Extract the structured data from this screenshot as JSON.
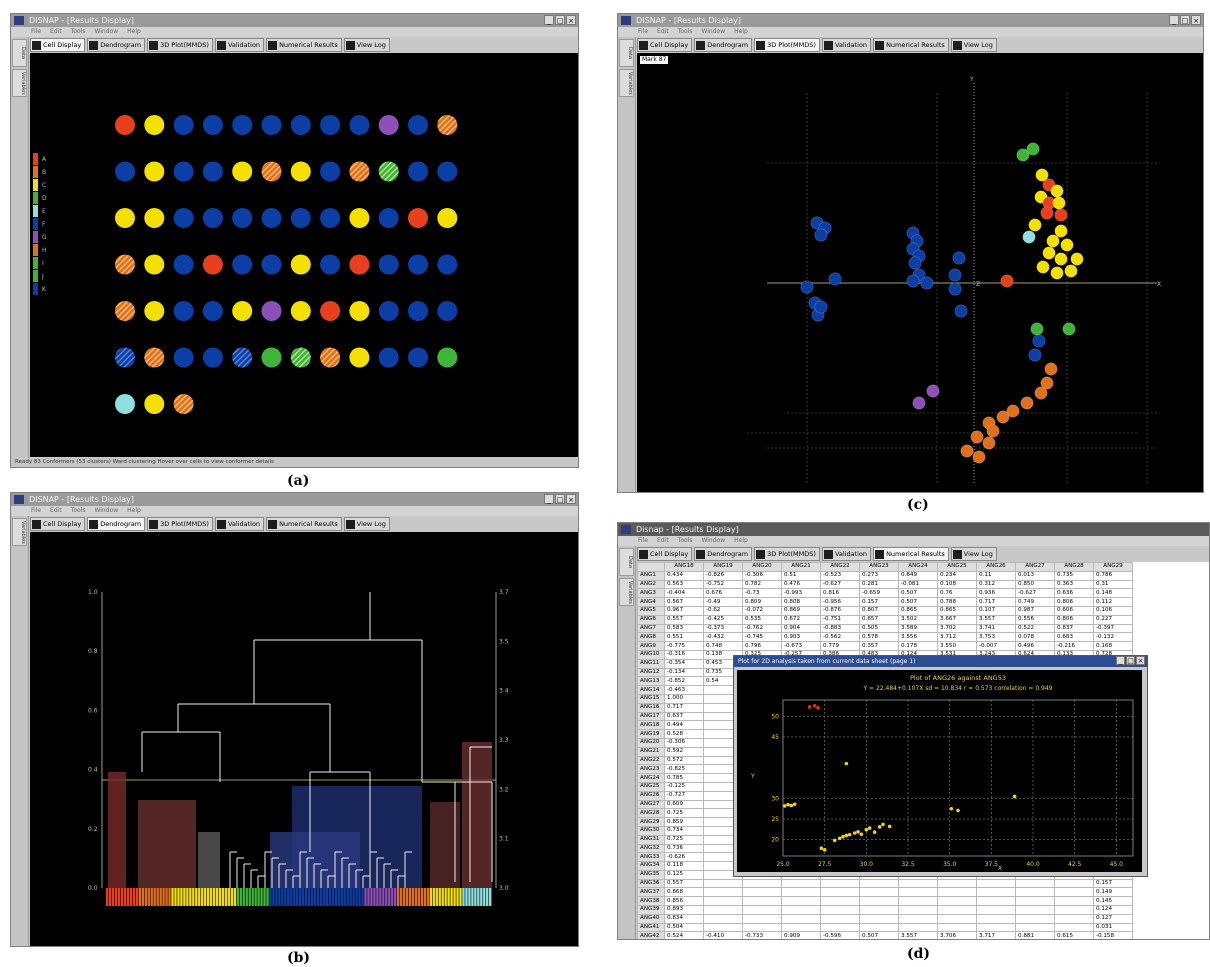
{
  "captions": {
    "a": "(a)",
    "b": "(b)",
    "c": "(c)",
    "d": "(d)"
  },
  "colors": {
    "red": "#e8401c",
    "yellow": "#f3e000",
    "blue": "#0c3fa6",
    "orange": "#e0701e",
    "green": "#3fb43a",
    "purple": "#8c50b8",
    "cyan": "#8ee0e0",
    "hatch_green": "#78c04a",
    "hatch_blue": "#2658b8"
  },
  "panel_a": {
    "title": "DISNAP - [Results Display]",
    "menu": [
      "File",
      "Edit",
      "Tools",
      "Window",
      "Help"
    ],
    "side_tabs": [
      "Data",
      "Variables"
    ],
    "tabs": [
      {
        "label": "Cell Display",
        "icon": "grid-icon"
      },
      {
        "label": "Dendrogram",
        "icon": "dendrogram-icon"
      },
      {
        "label": "3D Plot(MMDS)",
        "icon": "plot-3d-icon"
      },
      {
        "label": "Validation",
        "icon": "validation-icon"
      },
      {
        "label": "Numerical Results",
        "icon": "numbers-icon"
      },
      {
        "label": "View Log",
        "icon": "log-icon"
      }
    ],
    "active_tab": 0,
    "legend": [
      "A",
      "B",
      "C",
      "D",
      "E",
      "F",
      "G",
      "H",
      "I",
      "J",
      "K"
    ],
    "legend_colors": [
      "red",
      "orange",
      "yellow",
      "green",
      "cyan",
      "blue",
      "purple",
      "orange",
      "green",
      "green",
      "blue"
    ],
    "cells": [
      [
        "red",
        "yellow",
        "blue",
        "blue",
        "blue",
        "blue",
        "blue",
        "blue",
        "blue",
        "purple",
        "blue",
        "hatch_orange"
      ],
      [
        "blue",
        "yellow",
        "blue",
        "blue",
        "yellow",
        "hatch_orange",
        "yellow",
        "blue",
        "hatch_orange",
        "hatch_green",
        "blue",
        "blue"
      ],
      [
        "yellow",
        "yellow",
        "blue",
        "blue",
        "blue",
        "blue",
        "blue",
        "blue",
        "yellow",
        "blue",
        "red",
        "yellow"
      ],
      [
        "hatch_orange",
        "yellow",
        "blue",
        "red",
        "blue",
        "blue",
        "yellow",
        "blue",
        "red",
        "blue",
        "blue",
        "blue"
      ],
      [
        "hatch_orange",
        "yellow",
        "blue",
        "blue",
        "yellow",
        "purple",
        "yellow",
        "red",
        "yellow",
        "blue",
        "blue",
        "blue"
      ],
      [
        "hatch_blue",
        "hatch_orange",
        "blue",
        "blue",
        "hatch_blue",
        "green",
        "hatch_green",
        "hatch_orange",
        "yellow",
        "blue",
        "blue",
        "green"
      ],
      [
        "cyan",
        "yellow",
        "hatch_orange"
      ]
    ],
    "status": "Ready  83 Conformers (53 clusters)  Ward clustering  Hover over cells to view conformer details"
  },
  "panel_b": {
    "title": "DISNAP - [Results Display]",
    "menu": [
      "File",
      "Edit",
      "Tools",
      "Window",
      "Help"
    ],
    "side_tabs": [
      "Variables"
    ],
    "tabs": [
      {
        "label": "Cell Display",
        "icon": "grid-icon"
      },
      {
        "label": "Dendrogram",
        "icon": "dendrogram-icon"
      },
      {
        "label": "3D Plot(MMDS)",
        "icon": "plot-3d-icon"
      },
      {
        "label": "Validation",
        "icon": "validation-icon"
      },
      {
        "label": "Numerical Results",
        "icon": "numbers-icon"
      },
      {
        "label": "View Log",
        "icon": "log-icon"
      }
    ],
    "active_tab": 1,
    "left_axis_ticks": [
      "0.0",
      "0.2",
      "0.4",
      "0.6",
      "0.8",
      "1.0"
    ],
    "right_axis_ticks": [
      "3.0",
      "3.1",
      "3.2",
      "3.3",
      "3.4",
      "3.5",
      "3.7"
    ],
    "leaf_colors": [
      "red",
      "orange",
      "yellow",
      "yellow",
      "green",
      "blue",
      "blue",
      "blue",
      "purple",
      "orange",
      "yellow",
      "cyan"
    ]
  },
  "panel_c": {
    "title": "DISNAP - [Results Display]",
    "menu": [
      "File",
      "Edit",
      "Tools",
      "Window",
      "Help"
    ],
    "side_tabs": [
      "Data",
      "Variables"
    ],
    "tabs": [
      {
        "label": "Cell Display",
        "icon": "grid-icon"
      },
      {
        "label": "Dendrogram",
        "icon": "dendrogram-icon"
      },
      {
        "label": "3D Plot(MMDS)",
        "icon": "plot-3d-icon"
      },
      {
        "label": "Validation",
        "icon": "validation-icon"
      },
      {
        "label": "Numerical Results",
        "icon": "numbers-icon"
      },
      {
        "label": "View Log",
        "icon": "log-icon"
      }
    ],
    "active_tab": 2,
    "plot_tag": "Mark 87",
    "axis_x": "X",
    "axis_y": "Y",
    "axis_z": "Z"
  },
  "panel_d": {
    "title": "Disnap - [Results Display]",
    "menu": [
      "File",
      "Edit",
      "Tools",
      "Window",
      "Help"
    ],
    "side_tabs": [
      "Data",
      "Variables"
    ],
    "tabs": [
      {
        "label": "Cell Display",
        "icon": "grid-icon"
      },
      {
        "label": "Dendrogram",
        "icon": "dendrogram-icon"
      },
      {
        "label": "3D Plot(MMDS)",
        "icon": "plot-3d-icon"
      },
      {
        "label": "Validation",
        "icon": "validation-icon"
      },
      {
        "label": "Numerical Results",
        "icon": "numbers-icon"
      },
      {
        "label": "View Log",
        "icon": "log-icon"
      }
    ],
    "active_tab": 4,
    "columns": [
      "ANG18",
      "ANG19",
      "ANG20",
      "ANG21",
      "ANG22",
      "ANG23",
      "ANG24",
      "ANG25",
      "ANG26",
      "ANG27",
      "ANG28",
      "ANG29"
    ],
    "rows": [
      [
        "ANG1",
        "0.434",
        "-0.826",
        "-0.306",
        "0.51",
        "-0.523",
        "0.273",
        "0.649",
        "0.234",
        "0.11",
        "0.013",
        "0.735",
        "0.786"
      ],
      [
        "ANG2",
        "0.563",
        "-0.752",
        "0.782",
        "0.476",
        "-0.627",
        "0.281",
        "-0.081",
        "0.108",
        "0.312",
        "0.850",
        "0.363",
        "0.31"
      ],
      [
        "ANG3",
        "-0.404",
        "0.676",
        "-0.73",
        "-0.993",
        "0.816",
        "-0.659",
        "0.507",
        "0.76",
        "0.936",
        "-0.627",
        "0.636",
        "0.148"
      ],
      [
        "ANG4",
        "0.567",
        "-0.49",
        "0.809",
        "0.808",
        "-0.956",
        "0.157",
        "0.507",
        "0.788",
        "0.717",
        "0.749",
        "0.806",
        "0.112"
      ],
      [
        "ANG5",
        "0.967",
        "-0.62",
        "-0.072",
        "0.869",
        "-0.876",
        "0.807",
        "0.865",
        "0.865",
        "0.107",
        "0.987",
        "0.606",
        "0.106"
      ],
      [
        "ANG6",
        "0.557",
        "-0.425",
        "0.535",
        "0.672",
        "-0.751",
        "0.657",
        "3.502",
        "3.667",
        "3.557",
        "0.556",
        "0.806",
        "0.227"
      ],
      [
        "ANG7",
        "0.583",
        "-0.373",
        "-0.762",
        "0.904",
        "-0.883",
        "0.505",
        "3.589",
        "3.702",
        "3.741",
        "0.522",
        "0.837",
        "-0.397"
      ],
      [
        "ANG8",
        "0.551",
        "-0.432",
        "-0.745",
        "0.903",
        "-0.562",
        "0.578",
        "3.556",
        "3.712",
        "3.753",
        "0.078",
        "0.683",
        "-0.132"
      ],
      [
        "ANG9",
        "-0.775",
        "0.748",
        "0.796",
        "-0.673",
        "0.779",
        "0.357",
        "0.178",
        "3.550",
        "-0.007",
        "0.496",
        "-0.216",
        "0.168"
      ],
      [
        "ANG10",
        "-0.316",
        "0.138",
        "0.325",
        "-0.257",
        "0.386",
        "0.483",
        "0.124",
        "3.531",
        "3.243",
        "0.624",
        "0.133",
        "0.728"
      ],
      [
        "ANG11",
        "-0.354",
        "0.453",
        "0.732",
        "-0.534",
        "0.565",
        "-0.453",
        "0.500",
        "3.555",
        "3.722",
        "0.755",
        "-0.536",
        "0.134"
      ],
      [
        "ANG12",
        "-0.134",
        "0.735",
        "0.397",
        "-0.961",
        "0.296",
        "-0.685",
        "0.520",
        "0.600",
        "0.578",
        "-0.605",
        "-0.546",
        "-0.331"
      ],
      [
        "ANG13",
        "-0.852",
        "0.54",
        "0.75",
        "0.999",
        "-0.852",
        "0.955",
        "0.555",
        "3.722",
        "3.723",
        "-0.666",
        "0.168",
        "0.127"
      ],
      [
        "ANG14",
        "-0.463",
        "",
        "",
        "",
        "",
        "",
        "",
        "",
        "",
        "",
        "",
        "0.154"
      ],
      [
        "ANG15",
        "1.000",
        "",
        "",
        "",
        "",
        "",
        "",
        "",
        "",
        "",
        "",
        "0.127"
      ],
      [
        "ANG16",
        "0.717",
        "",
        "",
        "",
        "",
        "",
        "",
        "",
        "",
        "",
        "",
        "0.125"
      ],
      [
        "ANG17",
        "0.637",
        "",
        "",
        "",
        "",
        "",
        "",
        "",
        "",
        "",
        "",
        "0.666"
      ],
      [
        "ANG18",
        "0.494",
        "",
        "",
        "",
        "",
        "",
        "",
        "",
        "",
        "",
        "",
        "0.126"
      ],
      [
        "ANG19",
        "0.528",
        "",
        "",
        "",
        "",
        "",
        "",
        "",
        "",
        "",
        "",
        "0.036"
      ],
      [
        "ANG20",
        "-0.306",
        "",
        "",
        "",
        "",
        "",
        "",
        "",
        "",
        "",
        "",
        "0.224"
      ],
      [
        "ANG21",
        "0.592",
        "",
        "",
        "",
        "",
        "",
        "",
        "",
        "",
        "",
        "",
        "0.175"
      ],
      [
        "ANG22",
        "0.572",
        "",
        "",
        "",
        "",
        "",
        "",
        "",
        "",
        "",
        "",
        "0.432"
      ],
      [
        "ANG23",
        "-0.825",
        "",
        "",
        "",
        "",
        "",
        "",
        "",
        "",
        "",
        "",
        "0.034"
      ],
      [
        "ANG24",
        "0.785",
        "",
        "",
        "",
        "",
        "",
        "",
        "",
        "",
        "",
        "",
        "0.125"
      ],
      [
        "ANG25",
        "-0.125",
        "",
        "",
        "",
        "",
        "",
        "",
        "",
        "",
        "",
        "",
        "0.123"
      ],
      [
        "ANG26",
        "-0.727",
        "",
        "",
        "",
        "",
        "",
        "",
        "",
        "",
        "",
        "",
        "0.157"
      ],
      [
        "ANG27",
        "0.609",
        "",
        "",
        "",
        "",
        "",
        "",
        "",
        "",
        "",
        "",
        "0.149"
      ],
      [
        "ANG28",
        "0.725",
        "",
        "",
        "",
        "",
        "",
        "",
        "",
        "",
        "",
        "",
        "0.172"
      ],
      [
        "ANG29",
        "0.859",
        "",
        "",
        "",
        "",
        "",
        "",
        "",
        "",
        "",
        "",
        "0.135"
      ],
      [
        "ANG30",
        "0.734",
        "",
        "",
        "",
        "",
        "",
        "",
        "",
        "",
        "",
        "",
        "0.335"
      ],
      [
        "ANG31",
        "0.725",
        "",
        "",
        "",
        "",
        "",
        "",
        "",
        "",
        "",
        "",
        "0.125"
      ],
      [
        "ANG32",
        "0.736",
        "",
        "",
        "",
        "",
        "",
        "",
        "",
        "",
        "",
        "",
        "0.432"
      ],
      [
        "ANG33",
        "-0.626",
        "",
        "",
        "",
        "",
        "",
        "",
        "",
        "",
        "",
        "",
        "-0.224"
      ],
      [
        "ANG34",
        "0.118",
        "",
        "",
        "",
        "",
        "",
        "",
        "",
        "",
        "",
        "",
        "0.125"
      ],
      [
        "ANG35",
        "0.125",
        "",
        "",
        "",
        "",
        "",
        "",
        "",
        "",
        "",
        "",
        "-0.221"
      ],
      [
        "ANG36",
        "0.557",
        "",
        "",
        "",
        "",
        "",
        "",
        "",
        "",
        "",
        "",
        "0.157"
      ],
      [
        "ANG37",
        "0.868",
        "",
        "",
        "",
        "",
        "",
        "",
        "",
        "",
        "",
        "",
        "0.149"
      ],
      [
        "ANG38",
        "0.856",
        "",
        "",
        "",
        "",
        "",
        "",
        "",
        "",
        "",
        "",
        "0.145"
      ],
      [
        "ANG39",
        "0.893",
        "",
        "",
        "",
        "",
        "",
        "",
        "",
        "",
        "",
        "",
        "0.124"
      ],
      [
        "ANG40",
        "0.834",
        "",
        "",
        "",
        "",
        "",
        "",
        "",
        "",
        "",
        "",
        "0.127"
      ],
      [
        "ANG41",
        "0.504",
        "",
        "",
        "",
        "",
        "",
        "",
        "",
        "",
        "",
        "",
        "0.031"
      ],
      [
        "ANG42",
        "0.524",
        "-0.410",
        "-0.733",
        "0.909",
        "-0.596",
        "0.507",
        "3.557",
        "3.706",
        "3.717",
        "0.881",
        "0.615",
        "-0.158"
      ],
      [
        "ANG43",
        "0.730",
        "-0.596",
        "0.905",
        "-0.744",
        "0.762",
        "-0.755",
        "0.819",
        "0.896",
        "-0.908",
        "-0.549",
        "0.425",
        "0.166"
      ],
      [
        "ANG44",
        "0.830",
        "-0.405",
        "0.548",
        "0.577",
        "-0.600",
        "0.563",
        "-0.518",
        "3.213",
        "3.030",
        "0.994",
        "0.080",
        "0.047"
      ],
      [
        "ANG45",
        "1.000",
        "-0.365",
        "-0.736",
        "0.932",
        "-0.551",
        "0.546",
        "3.573",
        "-0.028",
        "3.711",
        "0.739",
        "0.631",
        "-0.307"
      ],
      [
        "ANG46",
        "0.266",
        "1.000",
        "0.733",
        "-0.518",
        "0.543",
        "-0.32",
        "0.557",
        "0.271",
        "0.306",
        "-0.519",
        "0.226",
        "0.186"
      ],
      [
        "ANG47",
        "0.178",
        "0.638",
        "1.000",
        "-0.767",
        "0.649",
        "-0.768",
        "0.834",
        "0.647",
        "-0.667",
        "-0.667",
        "0.125",
        "0.274"
      ],
      [
        "ANG48",
        "0.844",
        "-0.470",
        "0.766",
        "1.000",
        "-0.941",
        "0.906",
        "0.831",
        "0.855",
        "0.761",
        "0.866",
        "0.549",
        "-0.110"
      ]
    ],
    "popup": {
      "title": "Plot for 2D analysis taken from current data sheet (page 1)",
      "chart_title": "Plot of ANG26 against ANG53",
      "chart_subtitle": "Y = 22.484+0.107X  sd = 10.834  r = 0.573  correlation = 0.949",
      "xlabel": "X",
      "ylabel": "Y",
      "x_ticks": [
        "25.0",
        "27.5",
        "30.0",
        "32.5",
        "35.0",
        "37.5",
        "40.0",
        "42.5",
        "45.0"
      ],
      "y_ticks": [
        "20",
        "25",
        "30",
        "45",
        "50"
      ]
    }
  },
  "chart_data": {
    "type": "scatter",
    "title": "Plot of ANG26 against ANG53",
    "subtitle": "Y = 22.484+0.107X  sd = 10.834  r = 0.573  correlation = 0.949",
    "xlabel": "X",
    "ylabel": "Y",
    "xlim": [
      25.0,
      46.0
    ],
    "ylim": [
      16,
      54
    ],
    "grid": true,
    "x_ticks": [
      25.0,
      27.5,
      30.0,
      32.5,
      35.0,
      37.5,
      40.0,
      42.5,
      45.0
    ],
    "y_ticks": [
      20,
      25,
      30,
      45,
      50
    ],
    "series": [
      {
        "color": "#f0d020",
        "points": [
          [
            25.1,
            28.2
          ],
          [
            25.3,
            28.5
          ],
          [
            25.5,
            28.3
          ],
          [
            25.7,
            28.6
          ],
          [
            27.3,
            17.9
          ],
          [
            27.5,
            17.5
          ],
          [
            28.1,
            19.8
          ],
          [
            28.4,
            20.3
          ],
          [
            28.6,
            20.7
          ],
          [
            28.8,
            21.0
          ],
          [
            29.0,
            21.2
          ],
          [
            29.3,
            21.6
          ],
          [
            29.5,
            21.9
          ],
          [
            29.7,
            21.3
          ],
          [
            30.0,
            22.4
          ],
          [
            30.2,
            22.8
          ],
          [
            30.5,
            21.8
          ],
          [
            30.8,
            23.1
          ],
          [
            31.0,
            23.7
          ],
          [
            31.4,
            23.2
          ],
          [
            28.8,
            38.5
          ],
          [
            35.1,
            27.5
          ],
          [
            35.5,
            27.1
          ],
          [
            38.9,
            30.5
          ]
        ]
      },
      {
        "color": "#e53020",
        "points": [
          [
            26.6,
            52.3
          ],
          [
            26.9,
            52.6
          ],
          [
            27.1,
            52.1
          ]
        ]
      }
    ]
  }
}
